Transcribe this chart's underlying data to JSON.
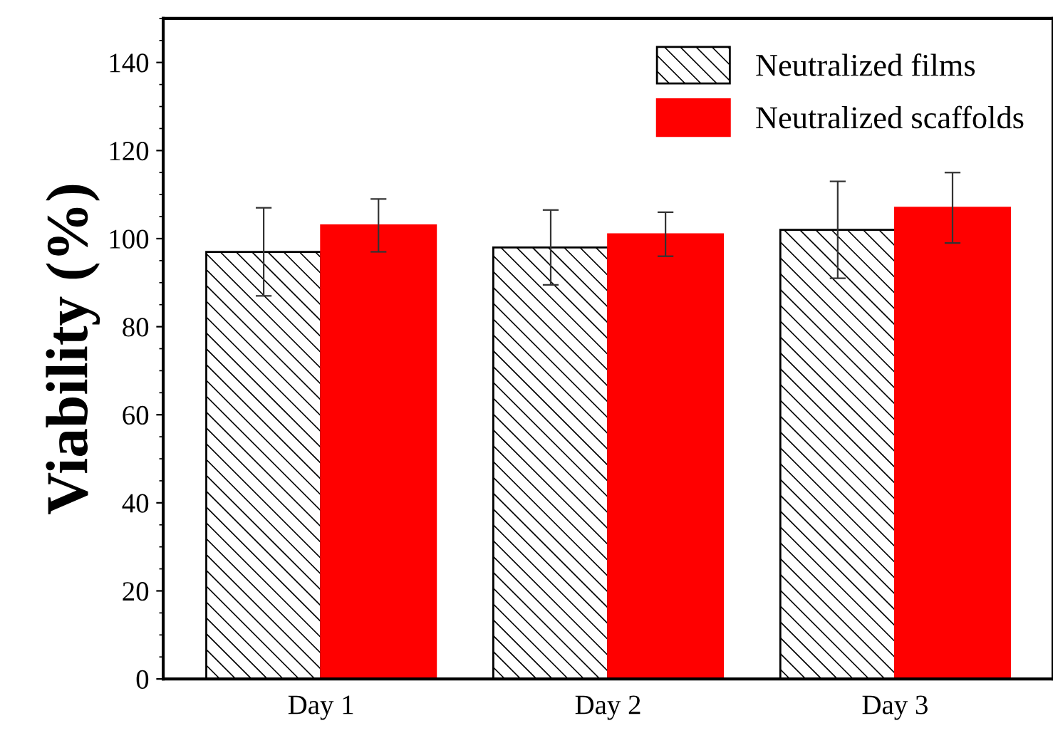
{
  "chart_data": {
    "type": "bar",
    "ylabel": "Viability (%)",
    "categories": [
      "Day 1",
      "Day 2",
      "Day 3"
    ],
    "series": [
      {
        "name": "Neutralized films",
        "color": "#000000",
        "values": [
          97,
          98,
          102
        ],
        "errors": [
          10,
          8.5,
          11
        ]
      },
      {
        "name": "Neutralized scaffolds",
        "color": "#ff0000",
        "values": [
          103,
          101,
          107
        ],
        "errors": [
          6,
          5,
          8
        ]
      }
    ],
    "ylim": [
      0,
      150
    ],
    "yticks": [
      0,
      20,
      40,
      60,
      80,
      100,
      120,
      140
    ],
    "legend": "top right",
    "grid": false
  }
}
